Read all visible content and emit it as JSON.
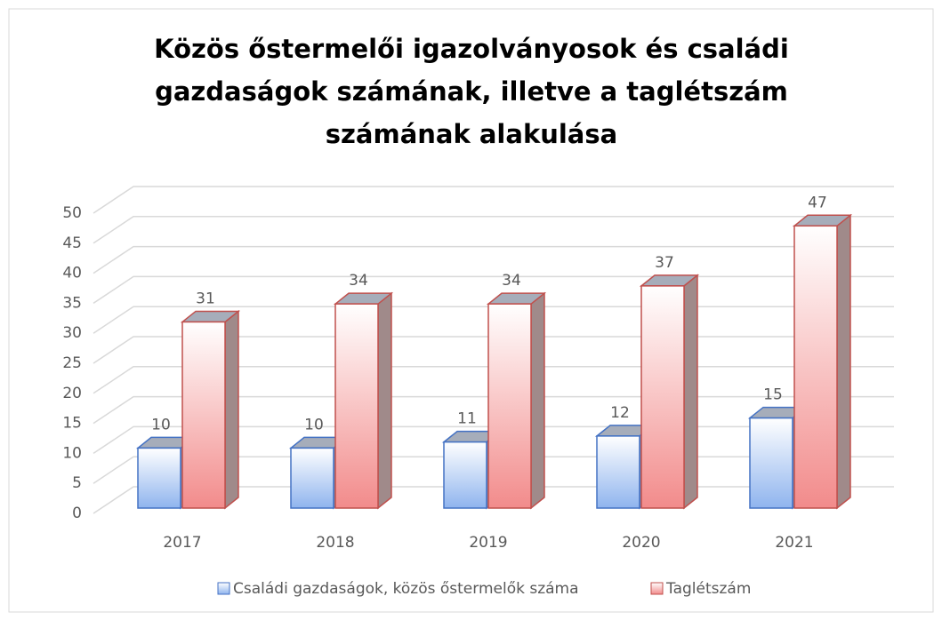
{
  "chart_data": {
    "type": "bar3d",
    "title": "Közös őstermelői igazolványosok és családi gazdaságok számának, illetve a taglétszám számának alakulása",
    "categories": [
      "2017",
      "2018",
      "2019",
      "2020",
      "2021"
    ],
    "series": [
      {
        "name": "Családi gazdaságok, közös őstermelők száma",
        "color": "#8fb4ee",
        "values": [
          10,
          10,
          11,
          12,
          15
        ]
      },
      {
        "name": "Taglétszám",
        "color": "#f28b8b",
        "values": [
          31,
          34,
          34,
          37,
          47
        ]
      }
    ],
    "ylim": [
      0,
      50
    ],
    "yticks": [
      0,
      5,
      10,
      15,
      20,
      25,
      30,
      35,
      40,
      45,
      50
    ],
    "grid": true,
    "legend": "bottom"
  }
}
